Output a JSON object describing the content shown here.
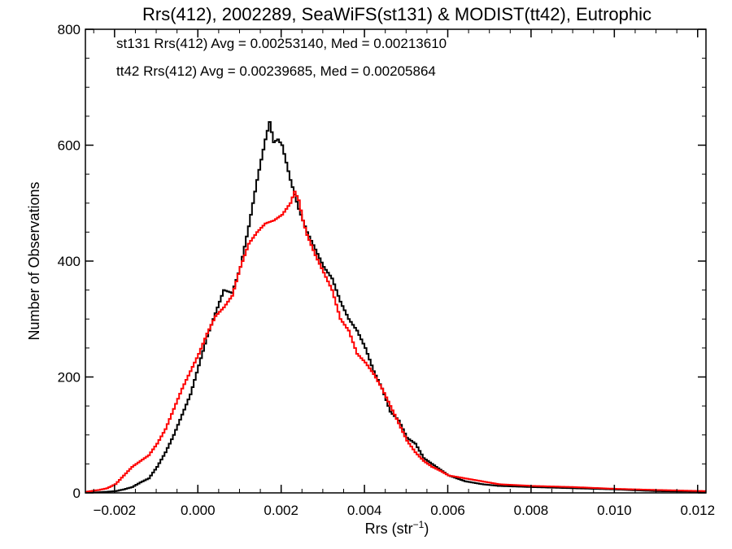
{
  "chart_data": {
    "type": "line",
    "title": "Rrs(412), 2002289, SeaWiFS(st131) & MODIST(tt42), Eutrophic",
    "xlabel": "Rrs (str",
    "xlabel_sup": "−1",
    "xlabel_end": ")",
    "ylabel": "Number of Observations",
    "xlim": [
      -0.0027,
      0.0122
    ],
    "ylim": [
      0,
      800
    ],
    "x_ticks": [
      {
        "value": -0.002,
        "label": "−0.002"
      },
      {
        "value": 0.0,
        "label": "0.000"
      },
      {
        "value": 0.002,
        "label": "0.002"
      },
      {
        "value": 0.004,
        "label": "0.004"
      },
      {
        "value": 0.006,
        "label": "0.006"
      },
      {
        "value": 0.008,
        "label": "0.008"
      },
      {
        "value": 0.01,
        "label": "0.010"
      },
      {
        "value": 0.012,
        "label": "0.012"
      }
    ],
    "y_ticks": [
      {
        "value": 0,
        "label": "0"
      },
      {
        "value": 200,
        "label": "200"
      },
      {
        "value": 400,
        "label": "400"
      },
      {
        "value": 600,
        "label": "600"
      },
      {
        "value": 800,
        "label": "800"
      }
    ],
    "grid": false,
    "legend_position": "top-left",
    "series": [
      {
        "name": "st131",
        "legend": "st131 Rrs(412) Avg = 0.00253140, Med = 0.00213610",
        "color": "#000000",
        "points": [
          [
            -0.0027,
            0
          ],
          [
            -0.0024,
            1
          ],
          [
            -0.0022,
            2
          ],
          [
            -0.002,
            3
          ],
          [
            -0.0018,
            6
          ],
          [
            -0.0016,
            10
          ],
          [
            -0.0014,
            18
          ],
          [
            -0.0012,
            25
          ],
          [
            -0.001,
            45
          ],
          [
            -0.0008,
            70
          ],
          [
            -0.0006,
            100
          ],
          [
            -0.0004,
            135
          ],
          [
            -0.0002,
            170
          ],
          [
            0.0,
            220
          ],
          [
            0.0002,
            270
          ],
          [
            0.0004,
            310
          ],
          [
            0.0006,
            350
          ],
          [
            0.0008,
            345
          ],
          [
            0.001,
            390
          ],
          [
            0.0012,
            460
          ],
          [
            0.0014,
            540
          ],
          [
            0.0016,
            610
          ],
          [
            0.0017,
            640
          ],
          [
            0.0018,
            605
          ],
          [
            0.0019,
            610
          ],
          [
            0.002,
            600
          ],
          [
            0.0021,
            570
          ],
          [
            0.0022,
            540
          ],
          [
            0.0023,
            515
          ],
          [
            0.0024,
            490
          ],
          [
            0.0026,
            450
          ],
          [
            0.0028,
            420
          ],
          [
            0.003,
            390
          ],
          [
            0.0032,
            370
          ],
          [
            0.0034,
            330
          ],
          [
            0.0036,
            300
          ],
          [
            0.0038,
            280
          ],
          [
            0.004,
            250
          ],
          [
            0.0042,
            210
          ],
          [
            0.0044,
            180
          ],
          [
            0.0046,
            140
          ],
          [
            0.0048,
            125
          ],
          [
            0.005,
            95
          ],
          [
            0.0052,
            85
          ],
          [
            0.0054,
            60
          ],
          [
            0.0056,
            50
          ],
          [
            0.0058,
            40
          ],
          [
            0.006,
            30
          ],
          [
            0.0064,
            20
          ],
          [
            0.0068,
            15
          ],
          [
            0.0072,
            12
          ],
          [
            0.008,
            10
          ],
          [
            0.009,
            8
          ],
          [
            0.01,
            6
          ],
          [
            0.011,
            3
          ],
          [
            0.0122,
            2
          ]
        ]
      },
      {
        "name": "tt42",
        "legend": "tt42 Rrs(412) Avg = 0.00239685, Med = 0.00205864",
        "color": "#ff0000",
        "points": [
          [
            -0.0027,
            2
          ],
          [
            -0.0024,
            5
          ],
          [
            -0.0022,
            8
          ],
          [
            -0.002,
            15
          ],
          [
            -0.0018,
            30
          ],
          [
            -0.0016,
            45
          ],
          [
            -0.0014,
            55
          ],
          [
            -0.0012,
            65
          ],
          [
            -0.001,
            85
          ],
          [
            -0.0008,
            110
          ],
          [
            -0.0006,
            145
          ],
          [
            -0.0004,
            180
          ],
          [
            -0.0002,
            210
          ],
          [
            0.0,
            240
          ],
          [
            0.0002,
            275
          ],
          [
            0.0004,
            305
          ],
          [
            0.0006,
            320
          ],
          [
            0.0008,
            340
          ],
          [
            0.001,
            390
          ],
          [
            0.0012,
            430
          ],
          [
            0.0014,
            450
          ],
          [
            0.0016,
            465
          ],
          [
            0.0018,
            470
          ],
          [
            0.002,
            480
          ],
          [
            0.0022,
            500
          ],
          [
            0.0023,
            520
          ],
          [
            0.0024,
            505
          ],
          [
            0.0025,
            470
          ],
          [
            0.0026,
            445
          ],
          [
            0.0028,
            410
          ],
          [
            0.003,
            380
          ],
          [
            0.0032,
            350
          ],
          [
            0.0034,
            300
          ],
          [
            0.0036,
            280
          ],
          [
            0.0038,
            240
          ],
          [
            0.004,
            225
          ],
          [
            0.0042,
            205
          ],
          [
            0.0044,
            180
          ],
          [
            0.0046,
            150
          ],
          [
            0.0048,
            120
          ],
          [
            0.005,
            90
          ],
          [
            0.0052,
            70
          ],
          [
            0.0054,
            55
          ],
          [
            0.0056,
            45
          ],
          [
            0.0058,
            38
          ],
          [
            0.006,
            30
          ],
          [
            0.0064,
            25
          ],
          [
            0.0068,
            20
          ],
          [
            0.0072,
            15
          ],
          [
            0.008,
            12
          ],
          [
            0.009,
            10
          ],
          [
            0.01,
            7
          ],
          [
            0.011,
            5
          ],
          [
            0.0122,
            3
          ]
        ]
      }
    ]
  }
}
